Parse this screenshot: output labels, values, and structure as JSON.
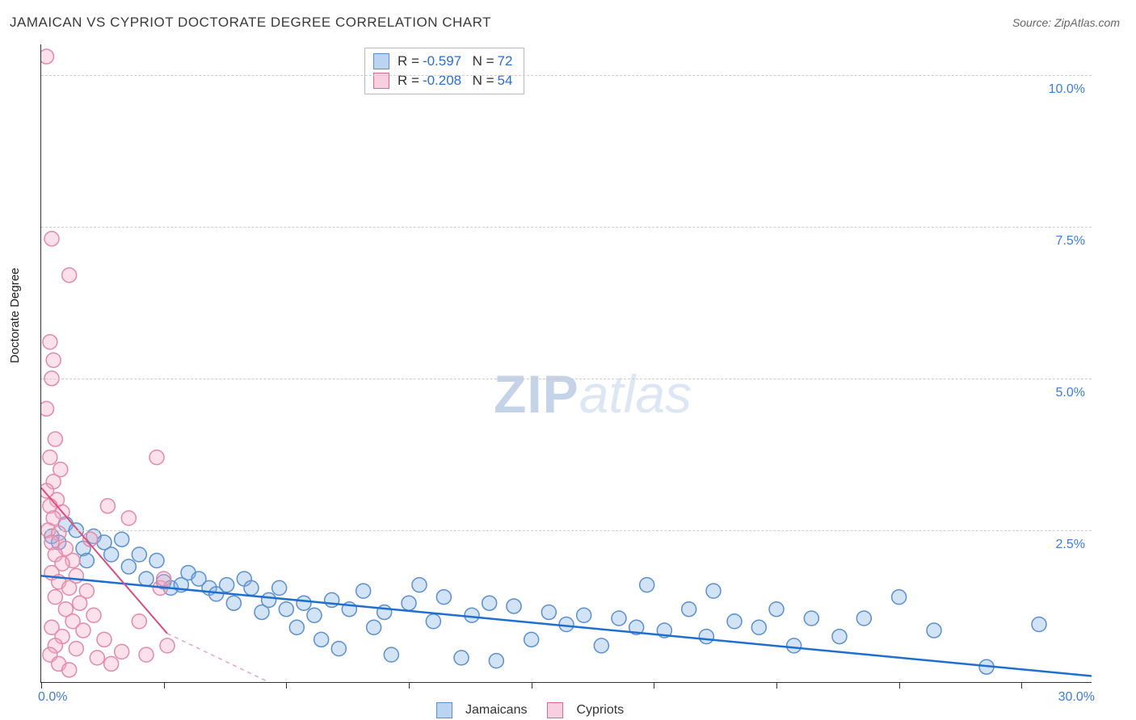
{
  "title": "JAMAICAN VS CYPRIOT DOCTORATE DEGREE CORRELATION CHART",
  "source": "Source: ZipAtlas.com",
  "y_axis_title": "Doctorate Degree",
  "watermark": {
    "bold": "ZIP",
    "light": "atlas"
  },
  "chart": {
    "type": "scatter",
    "background_color": "#ffffff",
    "grid_color": "#cccccc",
    "axis_color": "#333333",
    "label_color": "#3b7dd8",
    "label_fontsize": 16,
    "title_fontsize": 17,
    "xlim": [
      0,
      30
    ],
    "ylim": [
      0,
      10.5
    ],
    "x_ticks": [
      0,
      3.5,
      7,
      10.5,
      14,
      17.5,
      21,
      24.5,
      28
    ],
    "y_grid": [
      2.5,
      5.0,
      7.5,
      10.0
    ],
    "y_tick_labels": [
      "2.5%",
      "5.0%",
      "7.5%",
      "10.0%"
    ],
    "x_min_label": "0.0%",
    "x_max_label": "30.0%",
    "marker_radius": 9,
    "marker_stroke_width": 1.5,
    "series": [
      {
        "name": "Jamaicans",
        "fill": "rgba(130,175,230,0.35)",
        "stroke": "#5a8fd0",
        "R": "-0.597",
        "N": "72",
        "trend": {
          "x1": 0,
          "y1": 1.75,
          "x2": 30,
          "y2": 0.1,
          "color": "#1f6fd0",
          "width": 2.5,
          "dash": ""
        },
        "points": [
          [
            0.3,
            2.4
          ],
          [
            0.5,
            2.3
          ],
          [
            0.7,
            2.6
          ],
          [
            1.0,
            2.5
          ],
          [
            1.2,
            2.2
          ],
          [
            1.3,
            2.0
          ],
          [
            1.5,
            2.4
          ],
          [
            1.8,
            2.3
          ],
          [
            2.0,
            2.1
          ],
          [
            2.3,
            2.35
          ],
          [
            2.5,
            1.9
          ],
          [
            2.8,
            2.1
          ],
          [
            3.0,
            1.7
          ],
          [
            3.3,
            2.0
          ],
          [
            3.5,
            1.65
          ],
          [
            3.7,
            1.55
          ],
          [
            4.0,
            1.6
          ],
          [
            4.2,
            1.8
          ],
          [
            4.5,
            1.7
          ],
          [
            4.8,
            1.55
          ],
          [
            5.0,
            1.45
          ],
          [
            5.3,
            1.6
          ],
          [
            5.5,
            1.3
          ],
          [
            5.8,
            1.7
          ],
          [
            6.0,
            1.55
          ],
          [
            6.3,
            1.15
          ],
          [
            6.5,
            1.35
          ],
          [
            6.8,
            1.55
          ],
          [
            7.0,
            1.2
          ],
          [
            7.3,
            0.9
          ],
          [
            7.5,
            1.3
          ],
          [
            7.8,
            1.1
          ],
          [
            8.0,
            0.7
          ],
          [
            8.3,
            1.35
          ],
          [
            8.5,
            0.55
          ],
          [
            8.8,
            1.2
          ],
          [
            9.2,
            1.5
          ],
          [
            9.5,
            0.9
          ],
          [
            9.8,
            1.15
          ],
          [
            10.0,
            0.45
          ],
          [
            10.5,
            1.3
          ],
          [
            10.8,
            1.6
          ],
          [
            11.2,
            1.0
          ],
          [
            11.5,
            1.4
          ],
          [
            12.0,
            0.4
          ],
          [
            12.3,
            1.1
          ],
          [
            12.8,
            1.3
          ],
          [
            13.0,
            0.35
          ],
          [
            13.5,
            1.25
          ],
          [
            14.0,
            0.7
          ],
          [
            14.5,
            1.15
          ],
          [
            15.0,
            0.95
          ],
          [
            15.5,
            1.1
          ],
          [
            16.0,
            0.6
          ],
          [
            16.5,
            1.05
          ],
          [
            17.0,
            0.9
          ],
          [
            17.3,
            1.6
          ],
          [
            17.8,
            0.85
          ],
          [
            18.5,
            1.2
          ],
          [
            19.0,
            0.75
          ],
          [
            19.2,
            1.5
          ],
          [
            19.8,
            1.0
          ],
          [
            20.5,
            0.9
          ],
          [
            21.0,
            1.2
          ],
          [
            21.5,
            0.6
          ],
          [
            22.0,
            1.05
          ],
          [
            22.8,
            0.75
          ],
          [
            23.5,
            1.05
          ],
          [
            24.5,
            1.4
          ],
          [
            25.5,
            0.85
          ],
          [
            27.0,
            0.25
          ],
          [
            28.5,
            0.95
          ]
        ]
      },
      {
        "name": "Cypriots",
        "fill": "rgba(245,170,195,0.35)",
        "stroke": "#e389a9",
        "R": "-0.208",
        "N": "54",
        "trend": {
          "x1": 0,
          "y1": 3.2,
          "x2": 3.6,
          "y2": 0.8,
          "color": "#d94f7a",
          "width": 2,
          "dash": ""
        },
        "trend_ext": {
          "x1": 3.6,
          "y1": 0.8,
          "x2": 6.5,
          "y2": 0.0,
          "color": "#e9a6bd",
          "width": 1.5,
          "dash": "5,5"
        },
        "points": [
          [
            0.15,
            10.3
          ],
          [
            0.3,
            7.3
          ],
          [
            0.8,
            6.7
          ],
          [
            0.25,
            5.6
          ],
          [
            0.35,
            5.3
          ],
          [
            0.3,
            5.0
          ],
          [
            0.15,
            4.5
          ],
          [
            0.4,
            4.0
          ],
          [
            0.25,
            3.7
          ],
          [
            0.55,
            3.5
          ],
          [
            0.35,
            3.3
          ],
          [
            0.15,
            3.15
          ],
          [
            0.45,
            3.0
          ],
          [
            0.25,
            2.9
          ],
          [
            0.6,
            2.8
          ],
          [
            0.35,
            2.7
          ],
          [
            0.2,
            2.5
          ],
          [
            0.5,
            2.45
          ],
          [
            0.3,
            2.3
          ],
          [
            0.7,
            2.2
          ],
          [
            0.4,
            2.1
          ],
          [
            0.9,
            2.0
          ],
          [
            0.6,
            1.95
          ],
          [
            0.3,
            1.8
          ],
          [
            1.0,
            1.75
          ],
          [
            0.5,
            1.65
          ],
          [
            0.8,
            1.55
          ],
          [
            1.3,
            1.5
          ],
          [
            0.4,
            1.4
          ],
          [
            1.1,
            1.3
          ],
          [
            0.7,
            1.2
          ],
          [
            1.5,
            1.1
          ],
          [
            0.9,
            1.0
          ],
          [
            0.3,
            0.9
          ],
          [
            1.2,
            0.85
          ],
          [
            0.6,
            0.75
          ],
          [
            1.8,
            0.7
          ],
          [
            0.4,
            0.6
          ],
          [
            1.0,
            0.55
          ],
          [
            0.25,
            0.45
          ],
          [
            1.6,
            0.4
          ],
          [
            0.5,
            0.3
          ],
          [
            2.0,
            0.3
          ],
          [
            0.8,
            0.2
          ],
          [
            2.5,
            2.7
          ],
          [
            1.9,
            2.9
          ],
          [
            3.3,
            3.7
          ],
          [
            3.4,
            1.55
          ],
          [
            3.5,
            1.7
          ],
          [
            2.8,
            1.0
          ],
          [
            2.3,
            0.5
          ],
          [
            3.0,
            0.45
          ],
          [
            3.6,
            0.6
          ],
          [
            1.4,
            2.35
          ]
        ]
      }
    ]
  },
  "legend_bottom": [
    {
      "label": "Jamaicans",
      "swatch": "blue"
    },
    {
      "label": "Cypriots",
      "swatch": "pink"
    }
  ],
  "stats_labels": {
    "R": "R =",
    "N": "N ="
  }
}
